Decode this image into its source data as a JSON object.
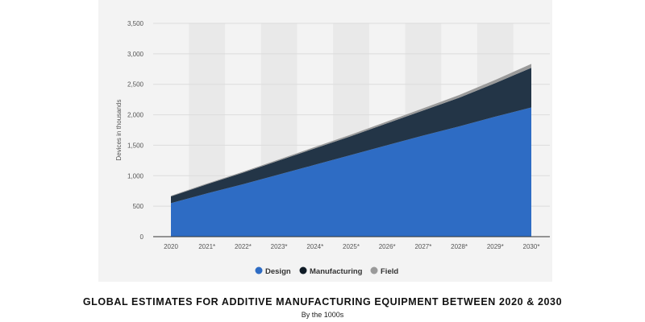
{
  "chart_data": {
    "type": "area",
    "stacked": true,
    "title": "GLOBAL ESTIMATES FOR ADDITIVE MANUFACTURING EQUIPMENT BETWEEN 2020  & 2030",
    "subtitle": "By the 1000s",
    "xlabel": "",
    "ylabel": "Devices in thousands",
    "ylim": [
      0,
      3500
    ],
    "yticks": [
      0,
      500,
      1000,
      1500,
      2000,
      2500,
      3000,
      3500
    ],
    "ytick_labels": [
      "0",
      "500",
      "1,000",
      "1,500",
      "2,000",
      "2,500",
      "3,000",
      "3,500"
    ],
    "categories": [
      "2020",
      "2021*",
      "2022*",
      "2023*",
      "2024*",
      "2025*",
      "2026*",
      "2027*",
      "2028*",
      "2029*",
      "2030*"
    ],
    "series": [
      {
        "name": "Design",
        "color": "#2e6cc4",
        "values": [
          550,
          710,
          860,
          1020,
          1180,
          1340,
          1500,
          1660,
          1810,
          1970,
          2120
        ]
      },
      {
        "name": "Manufacturing",
        "color": "#233547",
        "values": [
          110,
          150,
          190,
          230,
          270,
          310,
          360,
          410,
          470,
          550,
          650
        ]
      },
      {
        "name": "Field",
        "color": "#9a9a9a",
        "values": [
          10,
          12,
          15,
          18,
          22,
          26,
          30,
          36,
          44,
          52,
          65
        ]
      }
    ],
    "legend": "bottom-center",
    "grid": true
  }
}
